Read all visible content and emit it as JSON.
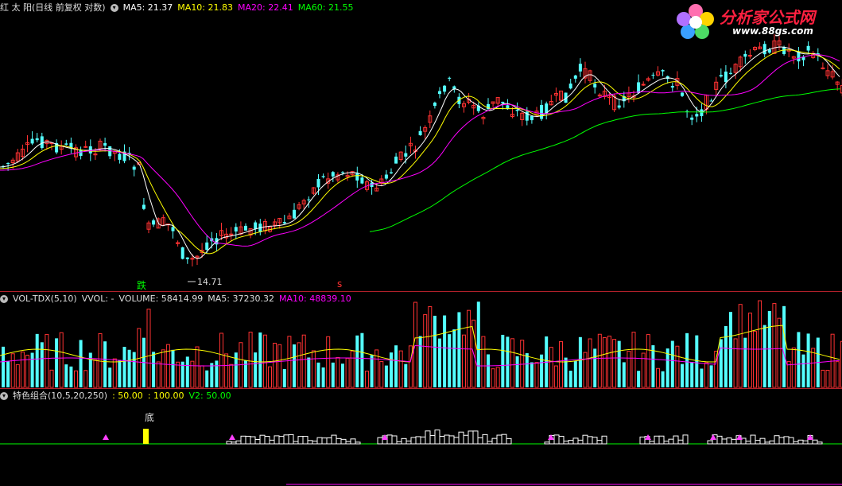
{
  "price_panel": {
    "legend": {
      "title": "红 太 阳(日线 前复权 对数)",
      "ma5": "MA5: 21.37",
      "ma10": "MA10: 21.83",
      "ma20": "MA20: 22.41",
      "ma60": "MA60: 21.55"
    },
    "low_label": "14.71",
    "signal_drop": "跌",
    "signal_s": "s"
  },
  "volume_panel": {
    "legend": {
      "name": "VOL-TDX(5,10)",
      "vvol": "VVOL: -",
      "volume": "VOLUME: 58414.99",
      "ma5": "MA5: 37230.32",
      "ma10": "MA10: 48839.10"
    }
  },
  "indicator_panel": {
    "legend": {
      "name": "特色组合(10,5,20,250)",
      "v0": ": 50.00",
      "v1": ": 100.00",
      "v2": "V2: 50.00"
    },
    "bottom_label": "底"
  },
  "logo": {
    "title": "分析家公式网",
    "url": "www.88gs.com"
  },
  "colors": {
    "up": "#ff3232",
    "down": "#54ffff",
    "ma5": "#ffffff",
    "ma10": "#ffff00",
    "ma20": "#ff00ff",
    "ma60": "#00ff00",
    "divider": "#b0202a"
  },
  "chart_data": {
    "type": "candlestick",
    "low_marker": 14.71
  }
}
